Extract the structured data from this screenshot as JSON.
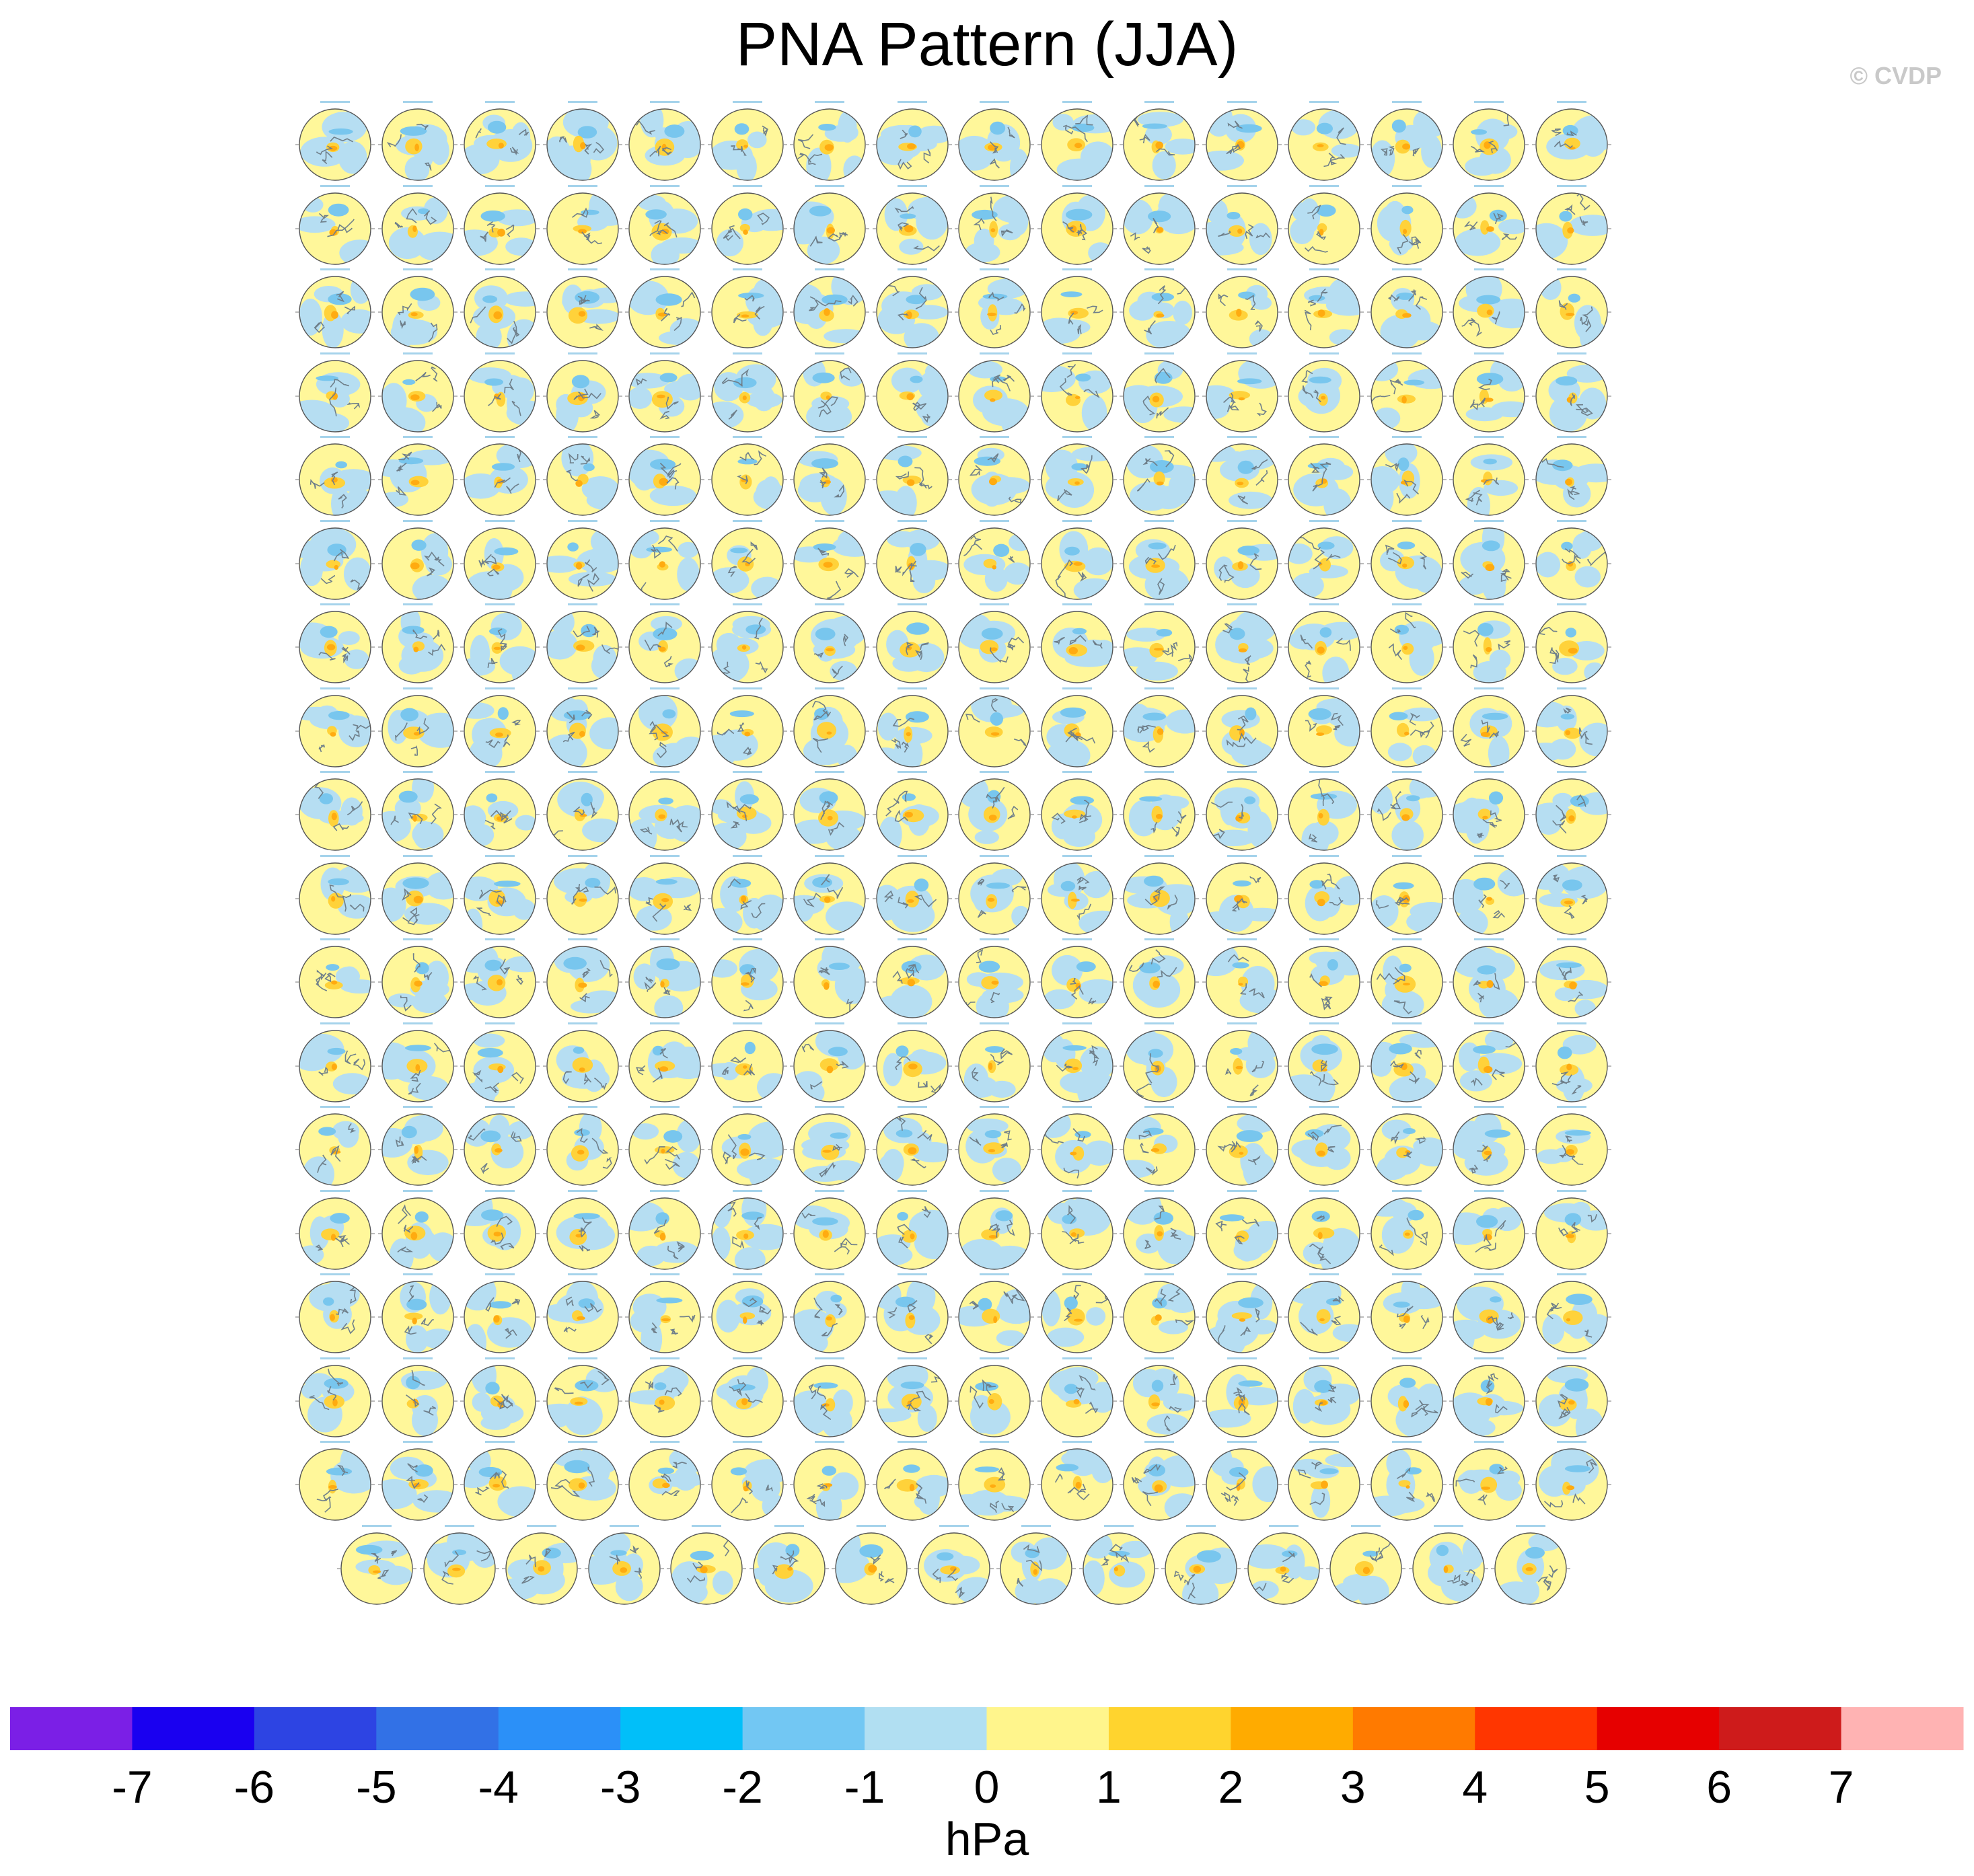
{
  "title": "PNA Pattern (JJA)",
  "credit": "© CVDP",
  "chart_data": {
    "type": "map-grid",
    "title": "PNA Pattern (JJA)",
    "rows": 18,
    "columns": 16,
    "last_row_columns": 15,
    "panel_count": 287,
    "projection": "north-polar-stereographic",
    "colorbar": {
      "label": "hPa",
      "levels": [
        -7,
        -6,
        -5,
        -4,
        -3,
        -2,
        -1,
        0,
        1,
        2,
        3,
        4,
        5,
        6,
        7
      ],
      "tick_labels": [
        "-7",
        "-6",
        "-5",
        "-4",
        "-3",
        "-2",
        "-1",
        "0",
        "1",
        "2",
        "3",
        "4",
        "5",
        "6",
        "7"
      ],
      "colors": [
        "#7b1fe6",
        "#1a00f0",
        "#2d44e3",
        "#3271e6",
        "#2b90f8",
        "#01bff9",
        "#72c7f3",
        "#b1dff2",
        "#fff58c",
        "#ffd42e",
        "#ffab00",
        "#ff7a00",
        "#ff3600",
        "#e60000",
        "#ce1b1b",
        "#ffb3b3"
      ]
    }
  }
}
